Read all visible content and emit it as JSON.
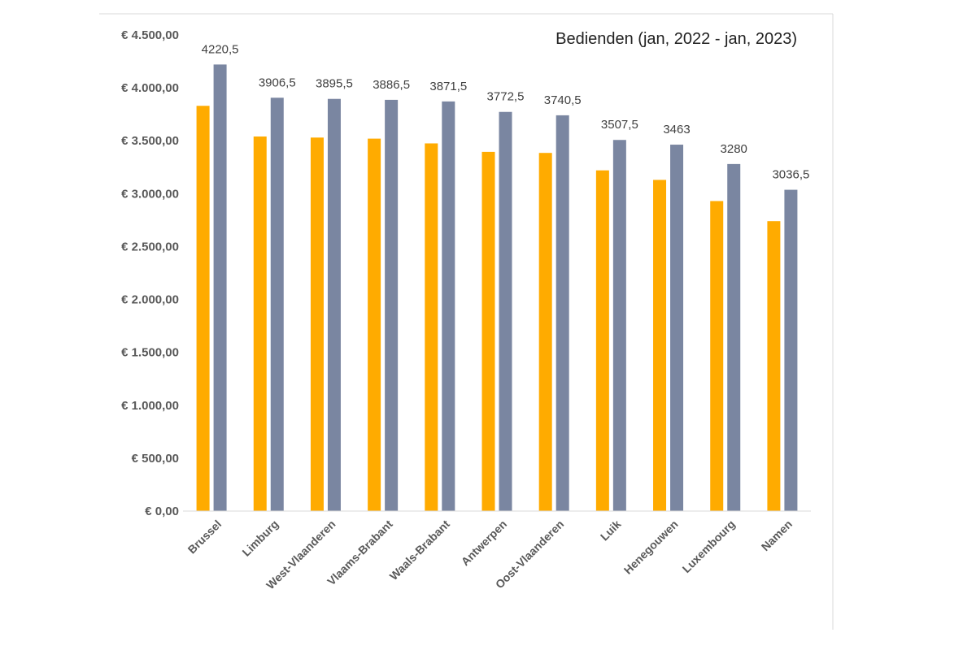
{
  "chart_data": {
    "type": "bar",
    "title": "Bedienden (jan, 2022 - jan, 2023)",
    "categories": [
      "Brussel",
      "Limburg",
      "West-Vlaanderen",
      "Vlaams-Brabant",
      "Waals-Brabant",
      "Antwerpen",
      "Oost-Vlaanderen",
      "Luik",
      "Henegouwen",
      "Luxembourg",
      "Namen"
    ],
    "series": [
      {
        "values": [
          3830,
          3540,
          3530,
          3520,
          3475,
          3395,
          3385,
          3220,
          3130,
          2930,
          2740
        ],
        "color": "#FFAB00"
      },
      {
        "values": [
          4220.5,
          3906.5,
          3895.5,
          3886.5,
          3871.5,
          3772.5,
          3740.5,
          3507.5,
          3463,
          3280,
          3036.5
        ],
        "color": "#7A86A1"
      }
    ],
    "data_labels": [
      "4220,5",
      "3906,5",
      "3895,5",
      "3886,5",
      "3871,5",
      "3772,5",
      "3740,5",
      "3507,5",
      "3463",
      "3280",
      "3036,5"
    ],
    "y_ticks": [
      0,
      500,
      1000,
      1500,
      2000,
      2500,
      3000,
      3500,
      4000,
      4500
    ],
    "y_tick_labels": [
      "€ 0,00",
      "€ 500,00",
      "€ 1.000,00",
      "€ 1.500,00",
      "€ 2.000,00",
      "€ 2.500,00",
      "€ 3.000,00",
      "€ 3.500,00",
      "€ 4.000,00",
      "€ 4.500,00"
    ],
    "ylim": [
      0,
      4500
    ],
    "grid": false,
    "xlabel": "",
    "ylabel": ""
  }
}
